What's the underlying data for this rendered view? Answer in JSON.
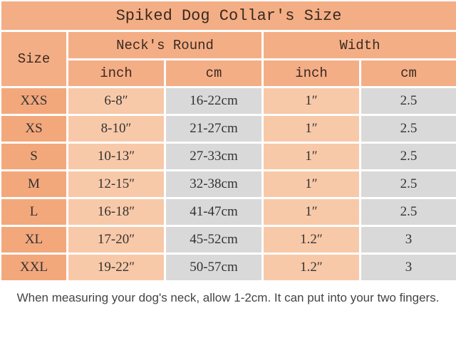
{
  "title": "Spiked Dog Collar's Size",
  "headers": {
    "size": "Size",
    "neck_round": "Neck's Round",
    "width": "Width",
    "sub": [
      "inch",
      "cm",
      "inch",
      "cm"
    ]
  },
  "rows": [
    {
      "size": "XXS",
      "neck_inch": "6-8″",
      "neck_cm": "16-22cm",
      "width_inch": "1″",
      "width_cm": "2.5"
    },
    {
      "size": "XS",
      "neck_inch": "8-10″",
      "neck_cm": "21-27cm",
      "width_inch": "1″",
      "width_cm": "2.5"
    },
    {
      "size": "S",
      "neck_inch": "10-13″",
      "neck_cm": "27-33cm",
      "width_inch": "1″",
      "width_cm": "2.5"
    },
    {
      "size": "M",
      "neck_inch": "12-15″",
      "neck_cm": "32-38cm",
      "width_inch": "1″",
      "width_cm": "2.5"
    },
    {
      "size": "L",
      "neck_inch": "16-18″",
      "neck_cm": "41-47cm",
      "width_inch": "1″",
      "width_cm": "2.5"
    },
    {
      "size": "XL",
      "neck_inch": "17-20″",
      "neck_cm": "45-52cm",
      "width_inch": "1.2″",
      "width_cm": "3"
    },
    {
      "size": "XXL",
      "neck_inch": "19-22″",
      "neck_cm": "50-57cm",
      "width_inch": "1.2″",
      "width_cm": "3"
    }
  ],
  "note": "When measuring your dog's neck, allow 1-2cm. It can put into  your two fingers.",
  "colors": {
    "header": "#f4ae86",
    "size_cell": "#f3a87c",
    "inch_cell": "#f8c9a8",
    "cm_cell": "#d9d9d9"
  }
}
